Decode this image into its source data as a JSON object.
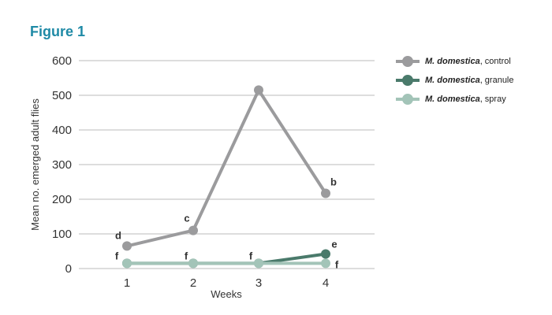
{
  "figure_title": "Figure 1",
  "chart_data": {
    "type": "line",
    "x": [
      1,
      2,
      3,
      4
    ],
    "xlabel": "Weeks",
    "ylabel": "Mean no. emerged adult flies",
    "ylim": [
      0,
      600
    ],
    "yticks": [
      0,
      100,
      200,
      300,
      400,
      500,
      600
    ],
    "grid": true,
    "legend_position": "top-right",
    "series": [
      {
        "name_italic": "M. domestica",
        "name_rest": ", control",
        "color": "#9b9b9d",
        "values": [
          65,
          110,
          515,
          217
        ],
        "letters": [
          "d",
          "c",
          "",
          "b"
        ]
      },
      {
        "name_italic": "M. domestica",
        "name_rest": ", granule",
        "color": "#4a7a6b",
        "values": [
          15,
          15,
          15,
          42
        ],
        "letters": [
          "",
          "",
          "",
          "e"
        ]
      },
      {
        "name_italic": "M. domestica",
        "name_rest": ", spray",
        "color": "#a3c4b8",
        "values": [
          15,
          15,
          15,
          15
        ],
        "letters": [
          "f",
          "f",
          "f",
          "f"
        ]
      }
    ]
  }
}
